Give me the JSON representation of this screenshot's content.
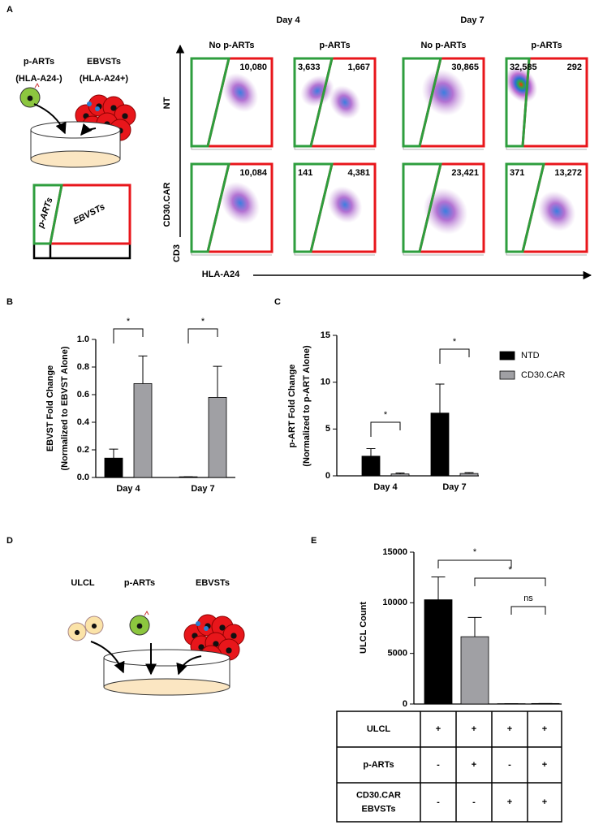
{
  "panel_labels": [
    "A",
    "B",
    "C",
    "D",
    "E"
  ],
  "panel_a": {
    "schematic": {
      "populations": [
        [
          "p-ARTs",
          "(HLA-A24-)"
        ],
        [
          "EBVSTs",
          "(HLA-A24+)"
        ]
      ],
      "gates": [
        "p-ARTs",
        "EBVSTs"
      ]
    },
    "days": [
      "Day 4",
      "Day 7"
    ],
    "conditions": [
      "No p-ARTs",
      "p-ARTs",
      "No p-ARTs",
      "p-ARTs"
    ],
    "rows": [
      "NT",
      "CD30.CAR"
    ],
    "y_axis": "CD3",
    "x_axis": "HLA-A24",
    "counts": [
      [
        {
          "ebvsts": "10,080"
        },
        {
          "p_arts": "3,633",
          "ebvsts": "1,667"
        },
        {
          "ebvsts": "30,865"
        },
        {
          "p_arts": "32,585",
          "ebvsts": "292"
        }
      ],
      [
        {
          "ebvsts": "10,084"
        },
        {
          "p_arts": "141",
          "ebvsts": "4,381"
        },
        {
          "ebvsts": "23,421"
        },
        {
          "p_arts": "371",
          "ebvsts": "13,272"
        }
      ]
    ]
  },
  "panel_d": {
    "cells": [
      "ULCL",
      "p-ARTs",
      "EBVSTs"
    ]
  },
  "chart_data": [
    {
      "type": "bar",
      "ylabel": [
        "EBVST Fold Change",
        "(Normalized to EBVST Alone)"
      ],
      "categories": [
        "Day 4",
        "Day 7"
      ],
      "series": [
        {
          "color": "#000000",
          "values": [
            0.14,
            0.005
          ],
          "errors": [
            0.065,
            0
          ]
        },
        {
          "color": "#a0a0a4",
          "values": [
            0.68,
            0.58
          ],
          "errors": [
            0.2,
            0.225
          ]
        }
      ],
      "ylim": [
        0,
        1.0
      ],
      "yticks": [
        {
          "value": 0,
          "label": "0.0"
        },
        0.2,
        0.4,
        0.6,
        0.8,
        {
          "value": 1.0,
          "label": "1.0"
        }
      ],
      "significance": [
        {
          "label": "*",
          "category": 0
        },
        {
          "label": "*",
          "category": 1
        }
      ]
    },
    {
      "type": "bar",
      "ylabel": [
        "p-ART Fold Change",
        "(Normalized to p-ART Alone)"
      ],
      "categories": [
        "Day 4",
        "Day 7"
      ],
      "series": [
        {
          "name": "NTD",
          "color": "#000000",
          "values": [
            2.1,
            6.7
          ],
          "errors": [
            0.8,
            3.1
          ]
        },
        {
          "name": "CD30.CAR",
          "color": "#a0a0a4",
          "values": [
            0.2,
            0.25
          ],
          "errors": [
            0.1,
            0.1
          ]
        }
      ],
      "ylim": [
        0,
        15
      ],
      "yticks": [
        0,
        5,
        10,
        15
      ],
      "legend": "right",
      "significance": [
        {
          "label": "*",
          "category": 0
        },
        {
          "label": "*",
          "category": 1
        }
      ]
    },
    {
      "type": "bar",
      "ylabel": [
        "ULCL Count"
      ],
      "categories": [
        null,
        null,
        null,
        null
      ],
      "values": [
        10300,
        6650,
        30,
        50
      ],
      "errors": [
        2250,
        1900,
        0,
        0
      ],
      "colors": [
        "#000000",
        "#a0a0a4",
        "#000000",
        "#a0a0a4"
      ],
      "ylim": [
        0,
        15000
      ],
      "yticks": [
        0,
        5000,
        10000,
        15000
      ],
      "significance": [
        {
          "label": "*",
          "bars": [
            0,
            2
          ]
        },
        {
          "label": "*",
          "bars": [
            1,
            3
          ]
        },
        {
          "label": "ns",
          "bars": [
            2,
            3
          ]
        }
      ]
    }
  ],
  "table_e": {
    "rows": [
      {
        "label": [
          "ULCL"
        ],
        "cells": [
          "+",
          "+",
          "+",
          "+"
        ]
      },
      {
        "label": [
          "p-ARTs"
        ],
        "cells": [
          "-",
          "+",
          "-",
          "+"
        ]
      },
      {
        "label": [
          "CD30.CAR",
          "EBVSTs"
        ],
        "cells": [
          "-",
          "-",
          "+",
          "+"
        ]
      }
    ]
  }
}
